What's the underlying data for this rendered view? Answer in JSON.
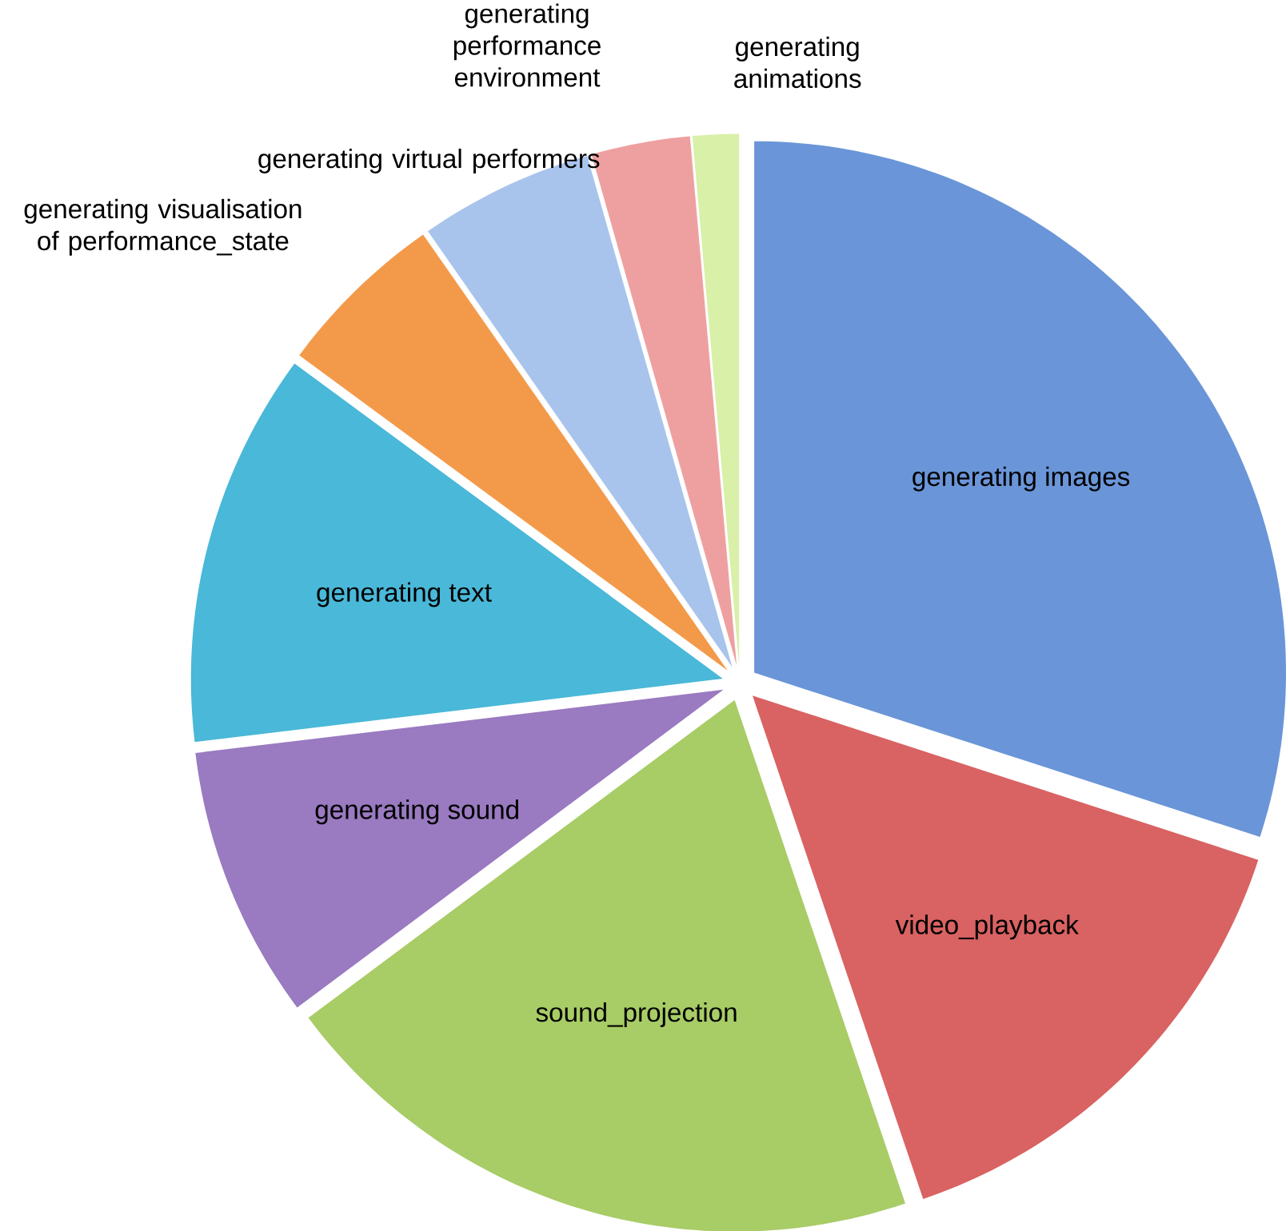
{
  "chart_data": {
    "type": "pie",
    "categories": [
      "generating images",
      "video_playback",
      "sound_projection",
      "generating sound",
      "generating text",
      "generating visualisation of performance_state",
      "generating virtual performers",
      "generating performance environment",
      "generating animations"
    ],
    "values": [
      30,
      14.8,
      20,
      8.3,
      12,
      5.2,
      5.3,
      3,
      1.4
    ],
    "colors": [
      "#6a95d8",
      "#d96262",
      "#a8cc66",
      "#9a7ac0",
      "#4ab8d8",
      "#f39a4a",
      "#a8c4ec",
      "#eea0a0",
      "#d8f0a8"
    ]
  }
}
